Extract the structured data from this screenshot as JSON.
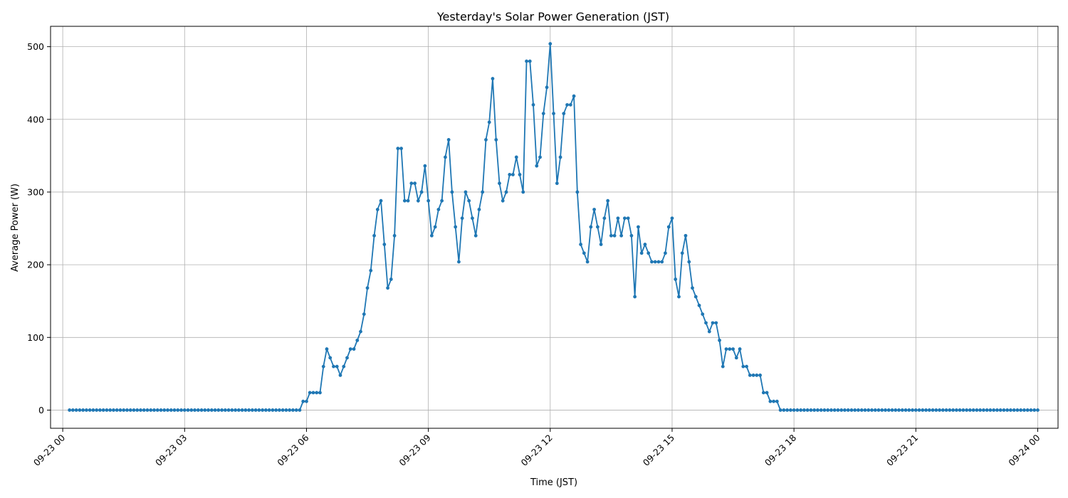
{
  "chart_data": {
    "type": "line",
    "title": "Yesterday's Solar Power Generation (JST)",
    "xlabel": "Time (JST)",
    "ylabel": "Average Power (W)",
    "grid": true,
    "xlim_hours": [
      -0.3,
      24.5
    ],
    "ylim": [
      -25,
      528
    ],
    "xticks": [
      {
        "hour": 0,
        "label": "09-23 00"
      },
      {
        "hour": 3,
        "label": "09-23 03"
      },
      {
        "hour": 6,
        "label": "09-23 06"
      },
      {
        "hour": 9,
        "label": "09-23 09"
      },
      {
        "hour": 12,
        "label": "09-23 12"
      },
      {
        "hour": 15,
        "label": "09-23 15"
      },
      {
        "hour": 18,
        "label": "09-23 18"
      },
      {
        "hour": 21,
        "label": "09-23 21"
      },
      {
        "hour": 24,
        "label": "09-24 00"
      }
    ],
    "yticks": [
      0,
      100,
      200,
      300,
      400,
      500
    ],
    "series": [
      {
        "color": "#1f77b4",
        "marker": "circle",
        "points": [
          [
            0.167,
            0
          ],
          [
            0.25,
            0
          ],
          [
            0.333,
            0
          ],
          [
            0.417,
            0
          ],
          [
            0.5,
            0
          ],
          [
            0.583,
            0
          ],
          [
            0.667,
            0
          ],
          [
            0.75,
            0
          ],
          [
            0.833,
            0
          ],
          [
            0.917,
            0
          ],
          [
            1.0,
            0
          ],
          [
            1.083,
            0
          ],
          [
            1.167,
            0
          ],
          [
            1.25,
            0
          ],
          [
            1.333,
            0
          ],
          [
            1.417,
            0
          ],
          [
            1.5,
            0
          ],
          [
            1.583,
            0
          ],
          [
            1.667,
            0
          ],
          [
            1.75,
            0
          ],
          [
            1.833,
            0
          ],
          [
            1.917,
            0
          ],
          [
            2.0,
            0
          ],
          [
            2.083,
            0
          ],
          [
            2.167,
            0
          ],
          [
            2.25,
            0
          ],
          [
            2.333,
            0
          ],
          [
            2.417,
            0
          ],
          [
            2.5,
            0
          ],
          [
            2.583,
            0
          ],
          [
            2.667,
            0
          ],
          [
            2.75,
            0
          ],
          [
            2.833,
            0
          ],
          [
            2.917,
            0
          ],
          [
            3.0,
            0
          ],
          [
            3.083,
            0
          ],
          [
            3.167,
            0
          ],
          [
            3.25,
            0
          ],
          [
            3.333,
            0
          ],
          [
            3.417,
            0
          ],
          [
            3.5,
            0
          ],
          [
            3.583,
            0
          ],
          [
            3.667,
            0
          ],
          [
            3.75,
            0
          ],
          [
            3.833,
            0
          ],
          [
            3.917,
            0
          ],
          [
            4.0,
            0
          ],
          [
            4.083,
            0
          ],
          [
            4.167,
            0
          ],
          [
            4.25,
            0
          ],
          [
            4.333,
            0
          ],
          [
            4.417,
            0
          ],
          [
            4.5,
            0
          ],
          [
            4.583,
            0
          ],
          [
            4.667,
            0
          ],
          [
            4.75,
            0
          ],
          [
            4.833,
            0
          ],
          [
            4.917,
            0
          ],
          [
            5.0,
            0
          ],
          [
            5.083,
            0
          ],
          [
            5.167,
            0
          ],
          [
            5.25,
            0
          ],
          [
            5.333,
            0
          ],
          [
            5.417,
            0
          ],
          [
            5.5,
            0
          ],
          [
            5.583,
            0
          ],
          [
            5.667,
            0
          ],
          [
            5.75,
            0
          ],
          [
            5.833,
            0
          ],
          [
            5.917,
            12
          ],
          [
            6.0,
            12
          ],
          [
            6.083,
            24
          ],
          [
            6.167,
            24
          ],
          [
            6.25,
            24
          ],
          [
            6.333,
            24
          ],
          [
            6.417,
            60
          ],
          [
            6.5,
            84
          ],
          [
            6.583,
            72
          ],
          [
            6.667,
            60
          ],
          [
            6.75,
            60
          ],
          [
            6.833,
            48
          ],
          [
            6.917,
            60
          ],
          [
            7.0,
            72
          ],
          [
            7.083,
            84
          ],
          [
            7.167,
            84
          ],
          [
            7.25,
            96
          ],
          [
            7.333,
            108
          ],
          [
            7.417,
            132
          ],
          [
            7.5,
            168
          ],
          [
            7.583,
            192
          ],
          [
            7.667,
            240
          ],
          [
            7.75,
            276
          ],
          [
            7.833,
            288
          ],
          [
            7.917,
            228
          ],
          [
            8.0,
            168
          ],
          [
            8.083,
            180
          ],
          [
            8.167,
            240
          ],
          [
            8.25,
            360
          ],
          [
            8.333,
            360
          ],
          [
            8.417,
            288
          ],
          [
            8.5,
            288
          ],
          [
            8.583,
            312
          ],
          [
            8.667,
            312
          ],
          [
            8.75,
            288
          ],
          [
            8.833,
            300
          ],
          [
            8.917,
            336
          ],
          [
            9.0,
            288
          ],
          [
            9.083,
            240
          ],
          [
            9.167,
            252
          ],
          [
            9.25,
            276
          ],
          [
            9.333,
            288
          ],
          [
            9.417,
            348
          ],
          [
            9.5,
            372
          ],
          [
            9.583,
            300
          ],
          [
            9.667,
            252
          ],
          [
            9.75,
            204
          ],
          [
            9.833,
            264
          ],
          [
            9.917,
            300
          ],
          [
            10.0,
            288
          ],
          [
            10.083,
            264
          ],
          [
            10.167,
            240
          ],
          [
            10.25,
            276
          ],
          [
            10.333,
            300
          ],
          [
            10.417,
            372
          ],
          [
            10.5,
            396
          ],
          [
            10.583,
            456
          ],
          [
            10.667,
            372
          ],
          [
            10.75,
            312
          ],
          [
            10.833,
            288
          ],
          [
            10.917,
            300
          ],
          [
            11.0,
            324
          ],
          [
            11.083,
            324
          ],
          [
            11.167,
            348
          ],
          [
            11.25,
            324
          ],
          [
            11.333,
            300
          ],
          [
            11.417,
            480
          ],
          [
            11.5,
            480
          ],
          [
            11.583,
            420
          ],
          [
            11.667,
            336
          ],
          [
            11.75,
            348
          ],
          [
            11.833,
            408
          ],
          [
            11.917,
            444
          ],
          [
            12.0,
            504
          ],
          [
            12.083,
            408
          ],
          [
            12.167,
            312
          ],
          [
            12.25,
            348
          ],
          [
            12.333,
            408
          ],
          [
            12.417,
            420
          ],
          [
            12.5,
            420
          ],
          [
            12.583,
            432
          ],
          [
            12.667,
            300
          ],
          [
            12.75,
            228
          ],
          [
            12.833,
            216
          ],
          [
            12.917,
            204
          ],
          [
            13.0,
            252
          ],
          [
            13.083,
            276
          ],
          [
            13.167,
            252
          ],
          [
            13.25,
            228
          ],
          [
            13.333,
            264
          ],
          [
            13.417,
            288
          ],
          [
            13.5,
            240
          ],
          [
            13.583,
            240
          ],
          [
            13.667,
            264
          ],
          [
            13.75,
            240
          ],
          [
            13.833,
            264
          ],
          [
            13.917,
            264
          ],
          [
            14.0,
            240
          ],
          [
            14.083,
            156
          ],
          [
            14.167,
            252
          ],
          [
            14.25,
            216
          ],
          [
            14.333,
            228
          ],
          [
            14.417,
            216
          ],
          [
            14.5,
            204
          ],
          [
            14.583,
            204
          ],
          [
            14.667,
            204
          ],
          [
            14.75,
            204
          ],
          [
            14.833,
            216
          ],
          [
            14.917,
            252
          ],
          [
            15.0,
            264
          ],
          [
            15.083,
            180
          ],
          [
            15.167,
            156
          ],
          [
            15.25,
            216
          ],
          [
            15.333,
            240
          ],
          [
            15.417,
            204
          ],
          [
            15.5,
            168
          ],
          [
            15.583,
            156
          ],
          [
            15.667,
            144
          ],
          [
            15.75,
            132
          ],
          [
            15.833,
            120
          ],
          [
            15.917,
            108
          ],
          [
            16.0,
            120
          ],
          [
            16.083,
            120
          ],
          [
            16.167,
            96
          ],
          [
            16.25,
            60
          ],
          [
            16.333,
            84
          ],
          [
            16.417,
            84
          ],
          [
            16.5,
            84
          ],
          [
            16.583,
            72
          ],
          [
            16.667,
            84
          ],
          [
            16.75,
            60
          ],
          [
            16.833,
            60
          ],
          [
            16.917,
            48
          ],
          [
            17.0,
            48
          ],
          [
            17.083,
            48
          ],
          [
            17.167,
            48
          ],
          [
            17.25,
            24
          ],
          [
            17.333,
            24
          ],
          [
            17.417,
            12
          ],
          [
            17.5,
            12
          ],
          [
            17.583,
            12
          ],
          [
            17.667,
            0
          ],
          [
            17.75,
            0
          ],
          [
            17.833,
            0
          ],
          [
            17.917,
            0
          ],
          [
            18.0,
            0
          ],
          [
            18.083,
            0
          ],
          [
            18.167,
            0
          ],
          [
            18.25,
            0
          ],
          [
            18.333,
            0
          ],
          [
            18.417,
            0
          ],
          [
            18.5,
            0
          ],
          [
            18.583,
            0
          ],
          [
            18.667,
            0
          ],
          [
            18.75,
            0
          ],
          [
            18.833,
            0
          ],
          [
            18.917,
            0
          ],
          [
            19.0,
            0
          ],
          [
            19.083,
            0
          ],
          [
            19.167,
            0
          ],
          [
            19.25,
            0
          ],
          [
            19.333,
            0
          ],
          [
            19.417,
            0
          ],
          [
            19.5,
            0
          ],
          [
            19.583,
            0
          ],
          [
            19.667,
            0
          ],
          [
            19.75,
            0
          ],
          [
            19.833,
            0
          ],
          [
            19.917,
            0
          ],
          [
            20.0,
            0
          ],
          [
            20.083,
            0
          ],
          [
            20.167,
            0
          ],
          [
            20.25,
            0
          ],
          [
            20.333,
            0
          ],
          [
            20.417,
            0
          ],
          [
            20.5,
            0
          ],
          [
            20.583,
            0
          ],
          [
            20.667,
            0
          ],
          [
            20.75,
            0
          ],
          [
            20.833,
            0
          ],
          [
            20.917,
            0
          ],
          [
            21.0,
            0
          ],
          [
            21.083,
            0
          ],
          [
            21.167,
            0
          ],
          [
            21.25,
            0
          ],
          [
            21.333,
            0
          ],
          [
            21.417,
            0
          ],
          [
            21.5,
            0
          ],
          [
            21.583,
            0
          ],
          [
            21.667,
            0
          ],
          [
            21.75,
            0
          ],
          [
            21.833,
            0
          ],
          [
            21.917,
            0
          ],
          [
            22.0,
            0
          ],
          [
            22.083,
            0
          ],
          [
            22.167,
            0
          ],
          [
            22.25,
            0
          ],
          [
            22.333,
            0
          ],
          [
            22.417,
            0
          ],
          [
            22.5,
            0
          ],
          [
            22.583,
            0
          ],
          [
            22.667,
            0
          ],
          [
            22.75,
            0
          ],
          [
            22.833,
            0
          ],
          [
            22.917,
            0
          ],
          [
            23.0,
            0
          ],
          [
            23.083,
            0
          ],
          [
            23.167,
            0
          ],
          [
            23.25,
            0
          ],
          [
            23.333,
            0
          ],
          [
            23.417,
            0
          ],
          [
            23.5,
            0
          ],
          [
            23.583,
            0
          ],
          [
            23.667,
            0
          ],
          [
            23.75,
            0
          ],
          [
            23.833,
            0
          ],
          [
            23.917,
            0
          ],
          [
            24.0,
            0
          ]
        ]
      }
    ]
  }
}
